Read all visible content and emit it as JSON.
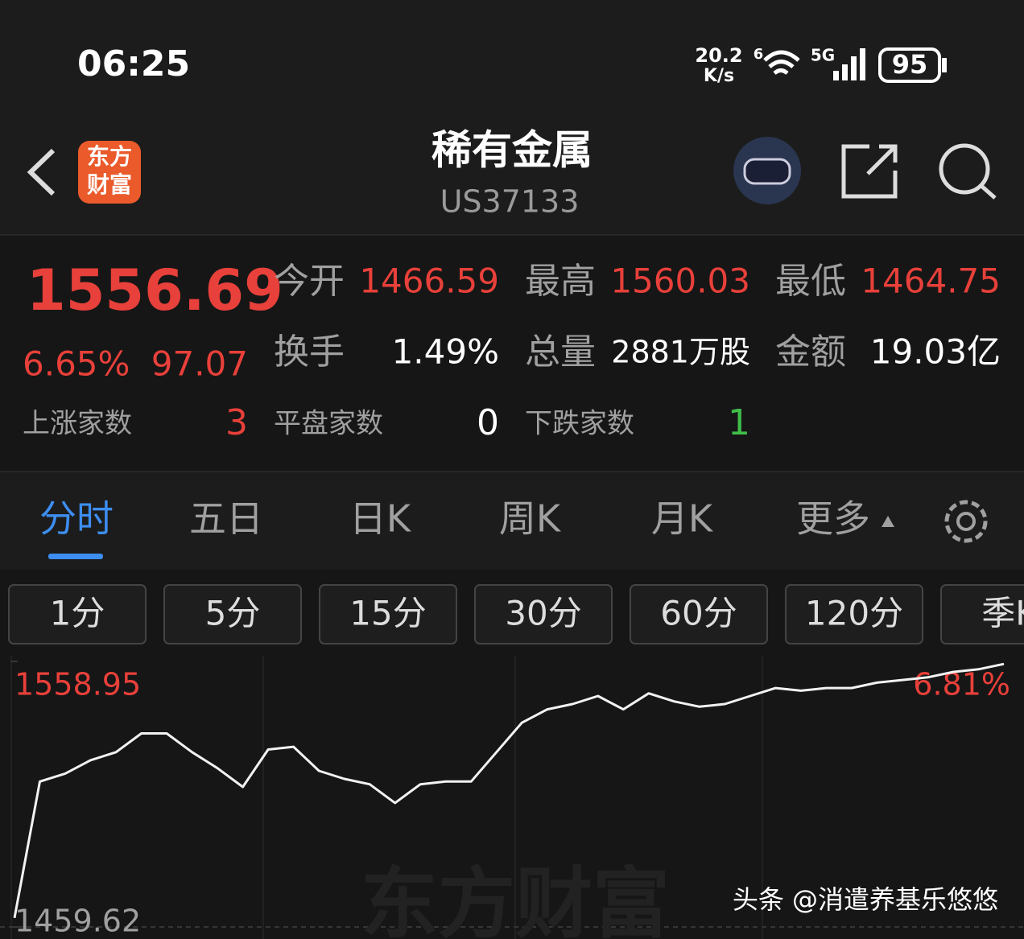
{
  "status_bar": {
    "time": "06:25",
    "net_speed": "20.2",
    "net_unit": "K/s",
    "wifi_badge": "6",
    "signal": "5G",
    "battery": "95"
  },
  "header": {
    "logo": [
      "东方",
      "财富"
    ],
    "title": "稀有金属",
    "code": "US37133"
  },
  "quote": {
    "price": "1556.69",
    "change_pct": "6.65%",
    "change": "97.07",
    "fields": [
      {
        "label": "今开",
        "value": "1466.59"
      },
      {
        "label": "最高",
        "value": "1560.03"
      },
      {
        "label": "最低",
        "value": "1464.75"
      },
      {
        "label": "换手",
        "value": "1.49%"
      },
      {
        "label": "总量",
        "value": "2881万股"
      },
      {
        "label": "金额",
        "value": "19.03亿"
      }
    ],
    "breadth": [
      {
        "label": "上涨家数",
        "value": "3"
      },
      {
        "label": "平盘家数",
        "value": "0"
      },
      {
        "label": "下跌家数",
        "value": "1"
      }
    ]
  },
  "tabs": {
    "items": [
      "分时",
      "五日",
      "日K",
      "周K",
      "月K",
      "更多"
    ]
  },
  "periods": [
    "1分",
    "5分",
    "15分",
    "30分",
    "60分",
    "120分",
    "季K"
  ],
  "chart": {
    "type": "line",
    "ylim": [
      1459.62,
      1558.95
    ],
    "yticks": [
      1459.62,
      1558.95
    ],
    "right_label": "6.81%",
    "values": [
      1463,
      1514,
      1517,
      1522,
      1525,
      1532,
      1532,
      1525,
      1519,
      1512,
      1526,
      1527,
      1518,
      1515,
      1513,
      1506,
      1513,
      1514,
      1514,
      1525,
      1536,
      1541,
      1543,
      1546,
      1541,
      1547,
      1544,
      1542,
      1543,
      1546,
      1549,
      1548,
      1549,
      1549,
      1551,
      1552,
      1553,
      1555,
      1556,
      1558
    ]
  },
  "watermark": "东方财富",
  "credit": "头条 @消遣养基乐悠悠"
}
